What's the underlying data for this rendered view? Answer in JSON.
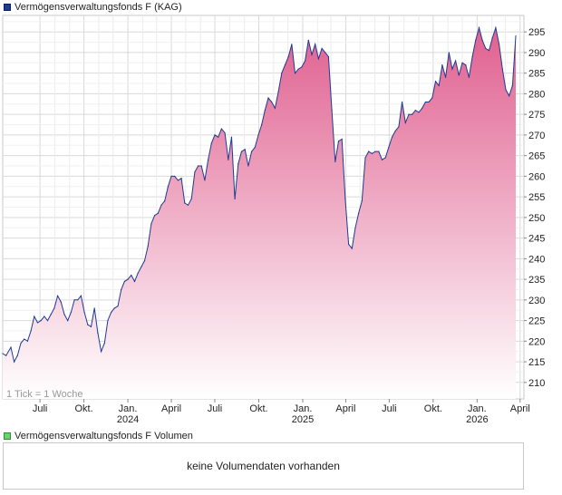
{
  "price_legend": "Vermögensverwaltungsfonds F (KAG)",
  "volume_legend": "Vermögensverwaltungsfonds F Volumen",
  "volume_message": "keine Volumendaten vorhanden",
  "tick_note": "1 Tick = 1 Woche",
  "colors": {
    "line": "#1f3a93",
    "fill_top": "#e0608f",
    "fill_bottom": "#ffffff",
    "grid": "#d9d9d9",
    "border": "#c8c8c8"
  },
  "chart_data": {
    "type": "area",
    "title": "Vermögensverwaltungsfonds F (KAG)",
    "ylim": [
      206,
      299
    ],
    "grid": true,
    "y_ticks": [
      210,
      215,
      220,
      225,
      230,
      235,
      240,
      245,
      250,
      255,
      260,
      265,
      270,
      275,
      280,
      285,
      290,
      295
    ],
    "x_tick_labels": [
      {
        "label": "Juli",
        "year": "",
        "date": "2023-07-01"
      },
      {
        "label": "Okt.",
        "year": "",
        "date": "2023-10-01"
      },
      {
        "label": "Jan.",
        "year": "2024",
        "date": "2024-01-01"
      },
      {
        "label": "April",
        "year": "",
        "date": "2024-04-01"
      },
      {
        "label": "Juli",
        "year": "",
        "date": "2024-07-01"
      },
      {
        "label": "Okt.",
        "year": "",
        "date": "2024-10-01"
      },
      {
        "label": "Jan.",
        "year": "2025",
        "date": "2025-01-01"
      },
      {
        "label": "April",
        "year": "",
        "date": "2025-04-01"
      },
      {
        "label": "Juli",
        "year": "",
        "date": "2025-07-01"
      },
      {
        "label": "Okt.",
        "year": "",
        "date": "2025-10-01"
      },
      {
        "label": "Jan.",
        "year": "2026",
        "date": "2026-01-01"
      },
      {
        "label": "April",
        "year": "",
        "date": "2026-04-01"
      }
    ],
    "series": [
      {
        "points": [
          [
            "2023-04-14",
            217
          ],
          [
            "2023-04-21",
            216.5
          ],
          [
            "2023-05-01",
            218.5
          ],
          [
            "2023-05-08",
            215
          ],
          [
            "2023-05-15",
            216.5
          ],
          [
            "2023-05-22",
            219.5
          ],
          [
            "2023-05-29",
            220.5
          ],
          [
            "2023-06-05",
            220
          ],
          [
            "2023-06-12",
            222.5
          ],
          [
            "2023-06-19",
            226
          ],
          [
            "2023-06-26",
            224.5
          ],
          [
            "2023-07-03",
            225
          ],
          [
            "2023-07-10",
            226
          ],
          [
            "2023-07-17",
            225
          ],
          [
            "2023-07-24",
            226.5
          ],
          [
            "2023-07-31",
            228
          ],
          [
            "2023-08-07",
            231
          ],
          [
            "2023-08-14",
            229.5
          ],
          [
            "2023-08-21",
            226.5
          ],
          [
            "2023-08-28",
            225
          ],
          [
            "2023-09-04",
            227
          ],
          [
            "2023-09-11",
            230
          ],
          [
            "2023-09-18",
            230
          ],
          [
            "2023-09-25",
            231
          ],
          [
            "2023-10-02",
            227
          ],
          [
            "2023-10-09",
            224
          ],
          [
            "2023-10-16",
            223.5
          ],
          [
            "2023-10-23",
            228
          ],
          [
            "2023-10-30",
            222
          ],
          [
            "2023-11-06",
            217.5
          ],
          [
            "2023-11-13",
            219.5
          ],
          [
            "2023-11-20",
            225
          ],
          [
            "2023-11-27",
            227
          ],
          [
            "2023-12-04",
            228
          ],
          [
            "2023-12-11",
            228.5
          ],
          [
            "2023-12-18",
            232.5
          ],
          [
            "2023-12-25",
            234.5
          ],
          [
            "2024-01-01",
            235
          ],
          [
            "2024-01-08",
            236
          ],
          [
            "2024-01-15",
            234.5
          ],
          [
            "2024-01-22",
            236.5
          ],
          [
            "2024-01-29",
            238
          ],
          [
            "2024-02-05",
            239.5
          ],
          [
            "2024-02-12",
            243
          ],
          [
            "2024-02-19",
            248.5
          ],
          [
            "2024-02-26",
            250.5
          ],
          [
            "2024-03-04",
            251
          ],
          [
            "2024-03-11",
            253
          ],
          [
            "2024-03-18",
            254
          ],
          [
            "2024-03-25",
            257.5
          ],
          [
            "2024-04-01",
            260
          ],
          [
            "2024-04-08",
            260
          ],
          [
            "2024-04-15",
            259
          ],
          [
            "2024-04-22",
            259.5
          ],
          [
            "2024-04-29",
            253.5
          ],
          [
            "2024-05-06",
            253
          ],
          [
            "2024-05-13",
            254.5
          ],
          [
            "2024-05-20",
            261
          ],
          [
            "2024-05-27",
            262.5
          ],
          [
            "2024-06-03",
            262.5
          ],
          [
            "2024-06-10",
            259
          ],
          [
            "2024-06-17",
            264
          ],
          [
            "2024-06-24",
            268
          ],
          [
            "2024-07-01",
            270
          ],
          [
            "2024-07-08",
            269.5
          ],
          [
            "2024-07-15",
            271.5
          ],
          [
            "2024-07-22",
            270.5
          ],
          [
            "2024-07-29",
            264
          ],
          [
            "2024-08-05",
            269.5
          ],
          [
            "2024-08-12",
            254.5
          ],
          [
            "2024-08-19",
            263
          ],
          [
            "2024-08-26",
            266
          ],
          [
            "2024-09-02",
            266.5
          ],
          [
            "2024-09-09",
            262.5
          ],
          [
            "2024-09-16",
            266
          ],
          [
            "2024-09-23",
            267
          ],
          [
            "2024-09-30",
            270
          ],
          [
            "2024-10-07",
            272.5
          ],
          [
            "2024-10-14",
            276
          ],
          [
            "2024-10-21",
            279
          ],
          [
            "2024-10-28",
            278
          ],
          [
            "2024-11-04",
            276.5
          ],
          [
            "2024-11-11",
            280.5
          ],
          [
            "2024-11-18",
            285
          ],
          [
            "2024-11-25",
            287
          ],
          [
            "2024-12-02",
            289
          ],
          [
            "2024-12-09",
            292
          ],
          [
            "2024-12-16",
            285
          ],
          [
            "2024-12-23",
            286
          ],
          [
            "2024-12-30",
            286.5
          ],
          [
            "2025-01-06",
            288
          ],
          [
            "2025-01-13",
            293
          ],
          [
            "2025-01-20",
            289.5
          ],
          [
            "2025-01-27",
            292
          ],
          [
            "2025-02-03",
            288.5
          ],
          [
            "2025-02-10",
            291
          ],
          [
            "2025-02-17",
            290
          ],
          [
            "2025-02-24",
            289
          ],
          [
            "2025-03-03",
            276
          ],
          [
            "2025-03-10",
            263.5
          ],
          [
            "2025-03-17",
            268.5
          ],
          [
            "2025-03-24",
            269
          ],
          [
            "2025-03-31",
            254.5
          ],
          [
            "2025-04-07",
            243.5
          ],
          [
            "2025-04-14",
            242.5
          ],
          [
            "2025-04-21",
            247.5
          ],
          [
            "2025-04-28",
            251
          ],
          [
            "2025-05-05",
            254
          ],
          [
            "2025-05-12",
            264.5
          ],
          [
            "2025-05-19",
            266
          ],
          [
            "2025-05-26",
            265.5
          ],
          [
            "2025-06-02",
            266
          ],
          [
            "2025-06-09",
            266
          ],
          [
            "2025-06-16",
            264
          ],
          [
            "2025-06-23",
            264.5
          ],
          [
            "2025-06-30",
            267
          ],
          [
            "2025-07-07",
            269.5
          ],
          [
            "2025-07-14",
            271
          ],
          [
            "2025-07-21",
            272
          ],
          [
            "2025-07-28",
            278
          ],
          [
            "2025-08-04",
            273
          ],
          [
            "2025-08-11",
            275
          ],
          [
            "2025-08-18",
            275
          ],
          [
            "2025-08-25",
            276
          ],
          [
            "2025-09-01",
            275.5
          ],
          [
            "2025-09-08",
            276.5
          ],
          [
            "2025-09-15",
            278
          ],
          [
            "2025-09-22",
            278
          ],
          [
            "2025-09-29",
            279
          ],
          [
            "2025-10-06",
            283
          ],
          [
            "2025-10-13",
            282
          ],
          [
            "2025-10-20",
            287
          ],
          [
            "2025-10-27",
            284
          ],
          [
            "2025-11-03",
            290
          ],
          [
            "2025-11-10",
            286
          ],
          [
            "2025-11-17",
            288
          ],
          [
            "2025-11-24",
            284.5
          ],
          [
            "2025-12-01",
            287.5
          ],
          [
            "2025-12-08",
            287
          ],
          [
            "2025-12-15",
            284
          ],
          [
            "2025-12-22",
            289
          ],
          [
            "2025-12-29",
            293
          ],
          [
            "2026-01-05",
            296
          ],
          [
            "2026-01-12",
            293
          ],
          [
            "2026-01-19",
            291
          ],
          [
            "2026-01-26",
            290.5
          ],
          [
            "2026-02-02",
            293.5
          ],
          [
            "2026-02-09",
            296
          ],
          [
            "2026-02-16",
            292
          ],
          [
            "2026-02-23",
            286
          ],
          [
            "2026-03-02",
            281
          ],
          [
            "2026-03-09",
            279.5
          ],
          [
            "2026-03-16",
            282
          ],
          [
            "2026-03-23",
            294
          ]
        ]
      }
    ]
  }
}
